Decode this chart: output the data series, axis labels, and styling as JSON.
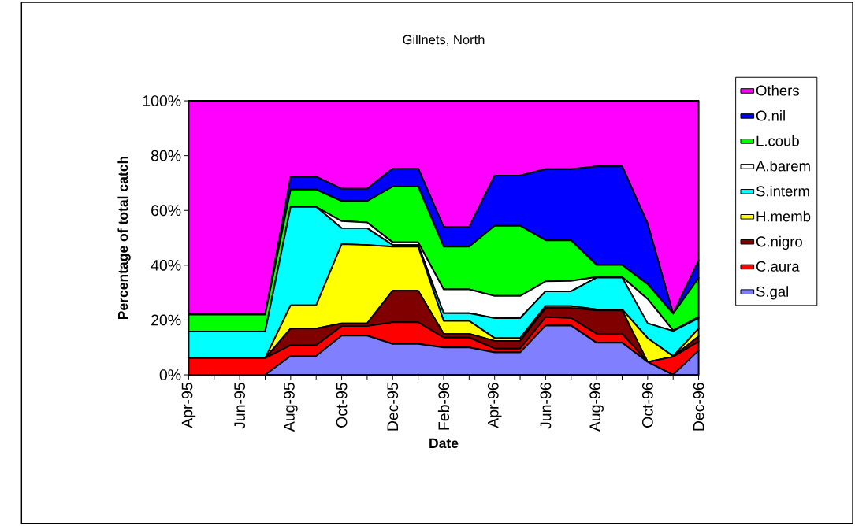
{
  "chart_data": {
    "type": "area",
    "stacked": true,
    "title": "Gillnets, North",
    "xlabel": "Date",
    "ylabel": "Percentage of total catch",
    "x": [
      "1995-04",
      "1995-05",
      "1995-06",
      "1995-07",
      "1995-08",
      "1995-09",
      "1995-10",
      "1995-11",
      "1995-12",
      "1996-01",
      "1996-02",
      "1996-03",
      "1996-04",
      "1996-05",
      "1996-06",
      "1996-07",
      "1996-08",
      "1996-09",
      "1996-10",
      "1996-11",
      "1996-12"
    ],
    "series": [
      {
        "name": "S.gal",
        "color": "#8080ff",
        "values": [
          0,
          0,
          0,
          0,
          6.9,
          6.9,
          14.3,
          14.3,
          11.3,
          11.3,
          10.0,
          10.0,
          8.2,
          8.2,
          18.0,
          18.0,
          11.7,
          11.7,
          4.7,
          0,
          8.9
        ]
      },
      {
        "name": "C.aura",
        "color": "#ff0000",
        "values": [
          6.1,
          6.1,
          6.1,
          6.1,
          3.9,
          3.9,
          3.5,
          3.5,
          7.9,
          7.9,
          3.6,
          3.6,
          1.4,
          1.4,
          3.1,
          2.7,
          3.3,
          3.3,
          0,
          6.6,
          3.3
        ]
      },
      {
        "name": "C.nigro",
        "color": "#800000",
        "values": [
          0,
          0,
          0,
          0,
          6.1,
          6.1,
          1.0,
          1.0,
          11.5,
          11.5,
          1.4,
          1.4,
          2.8,
          2.8,
          3.3,
          3.7,
          8.5,
          8.5,
          0,
          0,
          1.9
        ]
      },
      {
        "name": "H.memb",
        "color": "#ffff00",
        "values": [
          0,
          0,
          0,
          0,
          8.5,
          8.5,
          28.9,
          28.6,
          16.1,
          16.1,
          4.7,
          4.7,
          1.0,
          1.0,
          0.7,
          0.7,
          0.4,
          0.4,
          8.7,
          0.2,
          2.8
        ]
      },
      {
        "name": "S.interm",
        "color": "#00ffff",
        "values": [
          9.7,
          9.7,
          9.7,
          9.7,
          35.9,
          35.9,
          5.8,
          6.1,
          0.6,
          0.6,
          2.8,
          2.8,
          7.3,
          7.3,
          5.4,
          5.4,
          11.6,
          11.6,
          5.4,
          9.2,
          3.8
        ]
      },
      {
        "name": "A.barem",
        "color": "#ffffff",
        "values": [
          0,
          0,
          0,
          0,
          0,
          0,
          2.6,
          2.1,
          1.0,
          1.0,
          8.7,
          8.7,
          8.1,
          8.1,
          3.6,
          3.8,
          0.2,
          0.2,
          8.9,
          0.2,
          0.4
        ]
      },
      {
        "name": "L.coub",
        "color": "#00ff00",
        "values": [
          6.2,
          6.2,
          6.2,
          6.2,
          6.3,
          6.3,
          7.3,
          7.8,
          20.3,
          20.3,
          15.6,
          15.6,
          25.6,
          25.6,
          15.0,
          14.8,
          4.4,
          4.4,
          5.4,
          6.1,
          14.3
        ]
      },
      {
        "name": "O.nil",
        "color": "#0000ff",
        "values": [
          0,
          0,
          0,
          0,
          4.7,
          4.7,
          4.5,
          4.5,
          6.6,
          6.6,
          7.2,
          7.2,
          18.3,
          18.3,
          26.0,
          26.0,
          36.0,
          36.0,
          22.1,
          0,
          6.4
        ]
      },
      {
        "name": "Others",
        "color": "#ff00ff",
        "values": [
          78,
          78,
          78,
          78,
          27.7,
          27.7,
          32.1,
          32.1,
          24.7,
          24.7,
          46.0,
          46.0,
          27.3,
          27.3,
          24.9,
          24.9,
          23.9,
          23.9,
          44.8,
          77.7,
          58.2
        ]
      }
    ],
    "xlim": [
      "1995-04",
      "1996-12"
    ],
    "xticks": [
      {
        "value": "1995-04",
        "label": "Apr-95"
      },
      {
        "value": "1995-05",
        "label": null
      },
      {
        "value": "1995-06",
        "label": "Jun-95"
      },
      {
        "value": "1995-07",
        "label": null
      },
      {
        "value": "1995-08",
        "label": "Aug-95"
      },
      {
        "value": "1995-09",
        "label": null
      },
      {
        "value": "1995-10",
        "label": "Oct-95"
      },
      {
        "value": "1995-11",
        "label": null
      },
      {
        "value": "1995-12",
        "label": "Dec-95"
      },
      {
        "value": "1996-01",
        "label": null
      },
      {
        "value": "1996-02",
        "label": "Feb-96"
      },
      {
        "value": "1996-03",
        "label": null
      },
      {
        "value": "1996-04",
        "label": "Apr-96"
      },
      {
        "value": "1996-05",
        "label": null
      },
      {
        "value": "1996-06",
        "label": "Jun-96"
      },
      {
        "value": "1996-07",
        "label": null
      },
      {
        "value": "1996-08",
        "label": "Aug-96"
      },
      {
        "value": "1996-09",
        "label": null
      },
      {
        "value": "1996-10",
        "label": "Oct-96"
      },
      {
        "value": "1996-11",
        "label": null
      },
      {
        "value": "1996-12",
        "label": "Dec-96"
      }
    ],
    "ylim": [
      0,
      100
    ],
    "yticks": [
      {
        "value": 0,
        "label": "0%"
      },
      {
        "value": 20,
        "label": "20%"
      },
      {
        "value": 40,
        "label": "40%"
      },
      {
        "value": 60,
        "label": "60%"
      },
      {
        "value": 80,
        "label": "80%"
      },
      {
        "value": 100,
        "label": "100%"
      }
    ],
    "legend": "right"
  }
}
